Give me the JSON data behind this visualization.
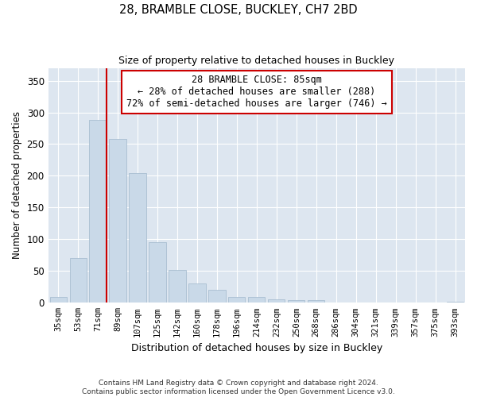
{
  "title_line1": "28, BRAMBLE CLOSE, BUCKLEY, CH7 2BD",
  "title_line2": "Size of property relative to detached houses in Buckley",
  "xlabel": "Distribution of detached houses by size in Buckley",
  "ylabel": "Number of detached properties",
  "categories": [
    "35sqm",
    "53sqm",
    "71sqm",
    "89sqm",
    "107sqm",
    "125sqm",
    "142sqm",
    "160sqm",
    "178sqm",
    "196sqm",
    "214sqm",
    "232sqm",
    "250sqm",
    "268sqm",
    "286sqm",
    "304sqm",
    "321sqm",
    "339sqm",
    "357sqm",
    "375sqm",
    "393sqm"
  ],
  "values": [
    9,
    71,
    288,
    258,
    204,
    95,
    52,
    31,
    20,
    9,
    9,
    5,
    4,
    4,
    0,
    0,
    0,
    0,
    0,
    0,
    2
  ],
  "bar_color": "#c9d9e8",
  "bar_edge_color": "#a0b8cc",
  "bar_edge_width": 0.5,
  "vline_x_index": 2,
  "vline_color": "#cc0000",
  "annotation_line1": "28 BRAMBLE CLOSE: 85sqm",
  "annotation_line2": "← 28% of detached houses are smaller (288)",
  "annotation_line3": "72% of semi-detached houses are larger (746) →",
  "annotation_box_color": "white",
  "annotation_box_edge_color": "#cc0000",
  "ylim": [
    0,
    370
  ],
  "yticks": [
    0,
    50,
    100,
    150,
    200,
    250,
    300,
    350
  ],
  "bg_color": "#dde6f0",
  "grid_color": "white",
  "footer_line1": "Contains HM Land Registry data © Crown copyright and database right 2024.",
  "footer_line2": "Contains public sector information licensed under the Open Government Licence v3.0."
}
